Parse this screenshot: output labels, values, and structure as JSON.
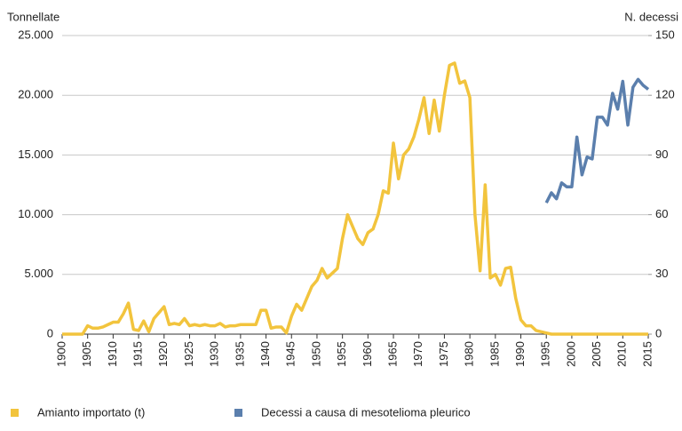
{
  "chart_data": {
    "type": "line",
    "y_label": "Tonnellate",
    "y2_label": "N. decessi",
    "x": [
      1900,
      1901,
      1902,
      1903,
      1904,
      1905,
      1906,
      1907,
      1908,
      1909,
      1910,
      1911,
      1912,
      1913,
      1914,
      1915,
      1916,
      1917,
      1918,
      1919,
      1920,
      1921,
      1922,
      1923,
      1924,
      1925,
      1926,
      1927,
      1928,
      1929,
      1930,
      1931,
      1932,
      1933,
      1934,
      1935,
      1936,
      1937,
      1938,
      1939,
      1940,
      1941,
      1942,
      1943,
      1944,
      1945,
      1946,
      1947,
      1948,
      1949,
      1950,
      1951,
      1952,
      1953,
      1954,
      1955,
      1956,
      1957,
      1958,
      1959,
      1960,
      1961,
      1962,
      1963,
      1964,
      1965,
      1966,
      1967,
      1968,
      1969,
      1970,
      1971,
      1972,
      1973,
      1974,
      1975,
      1976,
      1977,
      1978,
      1979,
      1980,
      1981,
      1982,
      1983,
      1984,
      1985,
      1986,
      1987,
      1988,
      1989,
      1990,
      1991,
      1992,
      1993,
      1994,
      1995,
      1996,
      1997,
      1998,
      1999,
      2000,
      2001,
      2002,
      2003,
      2004,
      2005,
      2006,
      2007,
      2008,
      2009,
      2010,
      2011,
      2012,
      2013,
      2014,
      2015
    ],
    "series": [
      {
        "name": "Amianto importato (t)",
        "color": "#f2c43d",
        "values": [
          0,
          0,
          0,
          0,
          0,
          700,
          500,
          500,
          600,
          800,
          1000,
          1000,
          1700,
          2600,
          400,
          300,
          1100,
          200,
          1300,
          1800,
          2300,
          800,
          900,
          800,
          1300,
          700,
          800,
          700,
          800,
          700,
          700,
          900,
          600,
          700,
          700,
          800,
          800,
          800,
          800,
          2000,
          2000,
          500,
          600,
          600,
          100,
          1500,
          2500,
          2000,
          3000,
          4000,
          4500,
          5500,
          4700,
          5100,
          5500,
          8000,
          10000,
          9000,
          8000,
          7500,
          8500,
          8800,
          10000,
          12000,
          11800,
          16000,
          13000,
          15000,
          15500,
          16500,
          18000,
          19800,
          16800,
          19600,
          17000,
          20000,
          22500,
          22700,
          21000,
          21200,
          19800,
          10000,
          5300,
          12500,
          4700,
          5000,
          4100,
          5500,
          5600,
          3000,
          1200,
          700,
          700,
          300,
          200,
          100,
          0,
          0,
          0,
          0,
          0,
          0,
          0,
          0,
          0,
          0,
          0,
          0,
          0,
          0,
          0,
          0,
          0,
          0,
          0,
          0
        ]
      },
      {
        "name": "Decessi a causa di mesotelioma pleurico",
        "color": "#5b7fad",
        "axis": "y2",
        "values": [
          null,
          null,
          null,
          null,
          null,
          null,
          null,
          null,
          null,
          null,
          null,
          null,
          null,
          null,
          null,
          null,
          null,
          null,
          null,
          null,
          null,
          null,
          null,
          null,
          null,
          null,
          null,
          null,
          null,
          null,
          null,
          null,
          null,
          null,
          null,
          null,
          null,
          null,
          null,
          null,
          null,
          null,
          null,
          null,
          null,
          null,
          null,
          null,
          null,
          null,
          null,
          null,
          null,
          null,
          null,
          null,
          null,
          null,
          null,
          null,
          null,
          null,
          null,
          null,
          null,
          null,
          null,
          null,
          null,
          null,
          null,
          null,
          null,
          null,
          null,
          null,
          null,
          null,
          null,
          null,
          null,
          null,
          null,
          null,
          null,
          null,
          null,
          null,
          null,
          null,
          null,
          null,
          null,
          null,
          null,
          66,
          71,
          68,
          76,
          74,
          74,
          99,
          80,
          89,
          88,
          109,
          109,
          105,
          121,
          113,
          127,
          105,
          124,
          128,
          125,
          123
        ]
      }
    ],
    "xlim": [
      1900,
      2015
    ],
    "xticks": [
      1900,
      1905,
      1910,
      1915,
      1920,
      1925,
      1930,
      1935,
      1940,
      1945,
      1950,
      1955,
      1960,
      1965,
      1970,
      1975,
      1980,
      1985,
      1990,
      1995,
      2000,
      2005,
      2010,
      2015
    ],
    "ylim": [
      0,
      25000
    ],
    "yticks": [
      0,
      {
        "value": 5000,
        "label": "5.000"
      },
      {
        "value": 10000,
        "label": "10.000"
      },
      {
        "value": 15000,
        "label": "15.000"
      },
      {
        "value": 20000,
        "label": "20.000"
      },
      {
        "value": 25000,
        "label": "25.000"
      }
    ],
    "y2lim": [
      0,
      150
    ],
    "y2ticks": [
      0,
      30,
      60,
      90,
      120,
      150
    ],
    "grid": true,
    "legend": "bottom"
  }
}
